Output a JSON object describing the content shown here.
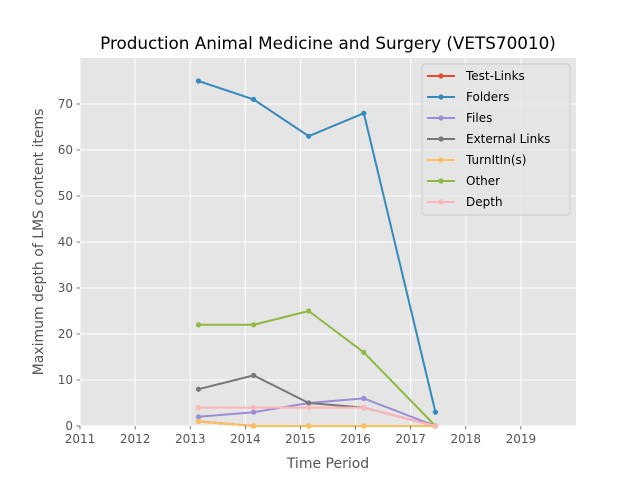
{
  "chart_data": {
    "type": "line",
    "title": "Production Animal Medicine and Surgery (VETS70010)",
    "xlabel": "Time Period",
    "ylabel": "Maximum depth of LMS content items",
    "xlim": [
      2011,
      2020
    ],
    "ylim": [
      0,
      80
    ],
    "xticks": [
      "2011",
      "2012",
      "2013",
      "2014",
      "2015",
      "2016",
      "2017",
      "2018",
      "2019"
    ],
    "yticks": [
      "0",
      "10",
      "20",
      "30",
      "40",
      "50",
      "60",
      "70"
    ],
    "grid": true,
    "legend_position": "top-right",
    "x": [
      2013.15,
      2014.15,
      2015.15,
      2016.15,
      2017.45
    ],
    "series": [
      {
        "name": "Test-Links",
        "color": "#E24A33",
        "values": [
          1,
          0,
          0,
          0,
          0
        ]
      },
      {
        "name": "Folders",
        "color": "#348ABD",
        "values": [
          75,
          71,
          63,
          68,
          3
        ]
      },
      {
        "name": "Files",
        "color": "#988ED5",
        "values": [
          2,
          3,
          5,
          6,
          0
        ]
      },
      {
        "name": "External Links",
        "color": "#777777",
        "values": [
          8,
          11,
          5,
          4,
          0
        ]
      },
      {
        "name": "TurnItIn(s)",
        "color": "#FBC15E",
        "values": [
          1,
          0,
          0,
          0,
          0
        ]
      },
      {
        "name": "Other",
        "color": "#8EBA42",
        "values": [
          22,
          22,
          25,
          16,
          0
        ]
      },
      {
        "name": "Depth",
        "color": "#FFB5B8",
        "values": [
          4,
          4,
          4,
          4,
          0
        ]
      }
    ]
  }
}
